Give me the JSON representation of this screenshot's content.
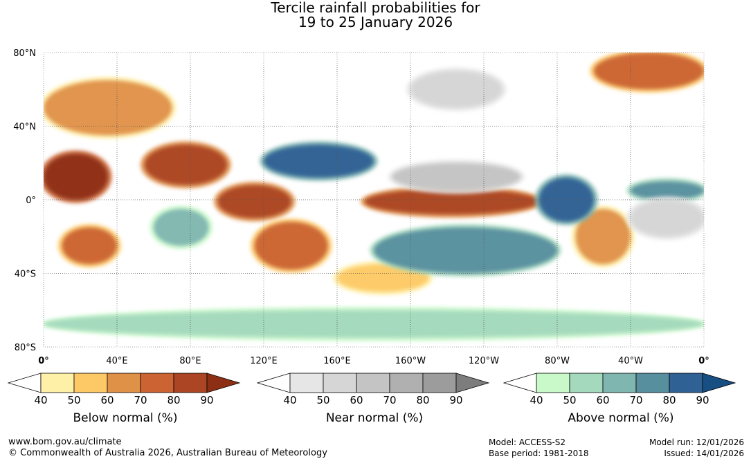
{
  "title": {
    "line1": "Tercile rainfall probabilities for",
    "line2": "19 to 25 January 2026"
  },
  "map": {
    "lat_labels": [
      "80°N",
      "40°N",
      "0°",
      "40°S",
      "80°S"
    ],
    "lat_values": [
      80,
      40,
      0,
      -40,
      -80
    ],
    "lon_labels": [
      "0°",
      "40°E",
      "80°E",
      "120°E",
      "160°E",
      "160°W",
      "120°W",
      "80°W",
      "40°W",
      "0°"
    ],
    "lon_values": [
      0,
      40,
      80,
      120,
      160,
      200,
      240,
      280,
      320,
      360
    ],
    "lon_range": [
      0,
      360
    ],
    "lat_range": [
      -80,
      80
    ],
    "gridlines": "dotted",
    "regions": [
      {
        "category": "below",
        "level": 90,
        "lon": [
          0,
          35
        ],
        "lat": [
          0,
          25
        ]
      },
      {
        "category": "below",
        "level": 80,
        "lon": [
          55,
          100
        ],
        "lat": [
          8,
          30
        ]
      },
      {
        "category": "below",
        "level": 80,
        "lon": [
          95,
          135
        ],
        "lat": [
          -10,
          8
        ]
      },
      {
        "category": "below",
        "level": 80,
        "lon": [
          175,
          270
        ],
        "lat": [
          -8,
          6
        ]
      },
      {
        "category": "below",
        "level": 70,
        "lon": [
          115,
          155
        ],
        "lat": [
          -38,
          -12
        ]
      },
      {
        "category": "below",
        "level": 70,
        "lon": [
          10,
          40
        ],
        "lat": [
          -35,
          -15
        ]
      },
      {
        "category": "below",
        "level": 60,
        "lon": [
          0,
          70
        ],
        "lat": [
          35,
          65
        ]
      },
      {
        "category": "below",
        "level": 60,
        "lon": [
          290,
          320
        ],
        "lat": [
          -35,
          -5
        ]
      },
      {
        "category": "below",
        "level": 70,
        "lon": [
          300,
          360
        ],
        "lat": [
          60,
          80
        ]
      },
      {
        "category": "below",
        "level": 50,
        "lon": [
          160,
          210
        ],
        "lat": [
          -50,
          -35
        ]
      },
      {
        "category": "above",
        "level": 80,
        "lon": [
          270,
          300
        ],
        "lat": [
          -12,
          12
        ]
      },
      {
        "category": "above",
        "level": 80,
        "lon": [
          120,
          180
        ],
        "lat": [
          12,
          30
        ]
      },
      {
        "category": "above",
        "level": 70,
        "lon": [
          180,
          280
        ],
        "lat": [
          -40,
          -15
        ]
      },
      {
        "category": "above",
        "level": 60,
        "lon": [
          60,
          90
        ],
        "lat": [
          -25,
          -5
        ]
      },
      {
        "category": "above",
        "level": 50,
        "lon": [
          0,
          360
        ],
        "lat": [
          -75,
          -60
        ]
      },
      {
        "category": "above",
        "level": 70,
        "lon": [
          320,
          360
        ],
        "lat": [
          0,
          10
        ]
      },
      {
        "category": "near",
        "level": 60,
        "lon": [
          190,
          260
        ],
        "lat": [
          5,
          20
        ]
      },
      {
        "category": "near",
        "level": 50,
        "lon": [
          320,
          360
        ],
        "lat": [
          -20,
          0
        ]
      },
      {
        "category": "near",
        "level": 50,
        "lon": [
          200,
          250
        ],
        "lat": [
          50,
          70
        ]
      }
    ]
  },
  "legends": [
    {
      "label": "Below normal (%)",
      "ticks": [
        "40",
        "50",
        "60",
        "70",
        "80",
        "90"
      ],
      "colors": [
        "#fff0a8",
        "#fdc966",
        "#e09148",
        "#cb6333",
        "#ab4523",
        "#8d2f14"
      ]
    },
    {
      "label": "Near normal (%)",
      "ticks": [
        "40",
        "50",
        "60",
        "70",
        "80",
        "90"
      ],
      "colors": [
        "#e6e6e6",
        "#d6d6d6",
        "#c4c4c4",
        "#b0b0b0",
        "#9c9c9c",
        "#7d7d7d"
      ]
    },
    {
      "label": "Above normal (%)",
      "ticks": [
        "40",
        "50",
        "60",
        "70",
        "80",
        "90"
      ],
      "colors": [
        "#c9f9c9",
        "#a4d9bd",
        "#7fb6b0",
        "#588f9f",
        "#2f6194",
        "#174f82"
      ]
    }
  ],
  "footer": {
    "website": "www.bom.gov.au/climate",
    "copyright": "© Commonwealth of Australia 2026, Australian Bureau of Meteorology",
    "model": "Model: ACCESS-S2",
    "base_period": "Base period: 1981-2018",
    "model_run": "Model run: 12/01/2026",
    "issued": "Issued: 14/01/2026"
  }
}
